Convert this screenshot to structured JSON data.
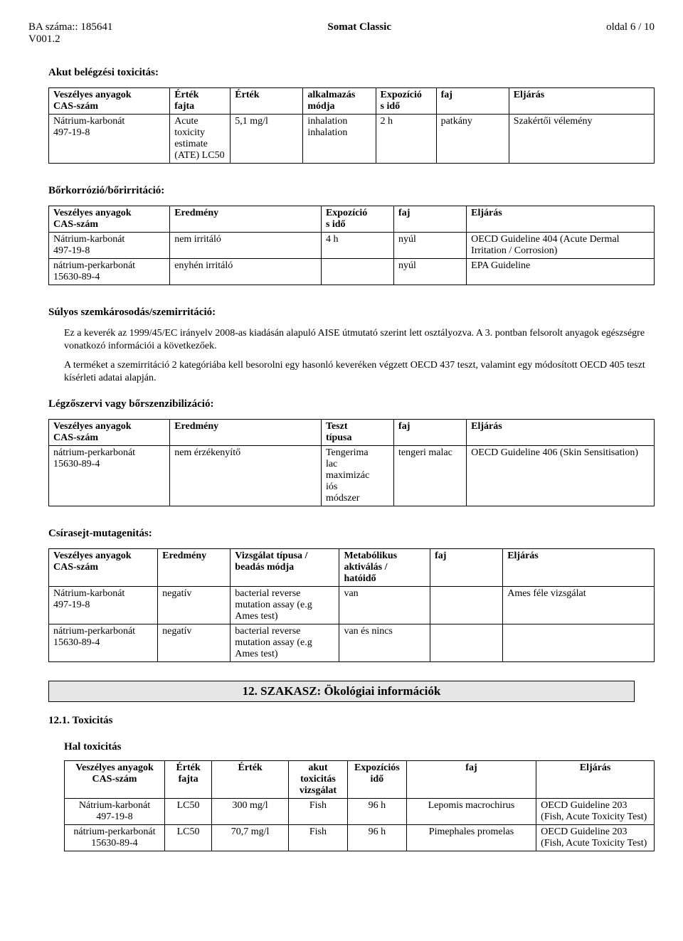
{
  "header": {
    "ba_label": "BA száma::",
    "ba_value": "185641",
    "v_label": "V001.2",
    "product": "Somat Classic",
    "page": "oldal 6 / 10"
  },
  "acute_inhalation": {
    "title": "Akut belégzési toxicitás:",
    "headers": [
      "Veszélyes anyagok\nCAS-szám",
      "Érték\nfajta",
      "Érték",
      "alkalmazás\nmódja",
      "Expozíció\ns idő",
      "faj",
      "Eljárás"
    ],
    "rows": [
      [
        "Nátrium-karbonát\n497-19-8",
        "Acute toxicity estimate (ATE) LC50",
        "5,1 mg/l",
        "inhalation inhalation",
        "2 h",
        "patkány",
        "Szakértői vélemény"
      ]
    ]
  },
  "skin_corrosion": {
    "title": "Bőrkorrózió/bőrirritáció:",
    "headers": [
      "Veszélyes anyagok\nCAS-szám",
      "Eredmény",
      "Expozíció\ns idő",
      "faj",
      "Eljárás"
    ],
    "rows": [
      [
        "Nátrium-karbonát\n497-19-8",
        "nem irritáló",
        "4 h",
        "nyúl",
        "OECD Guideline 404 (Acute Dermal Irritation / Corrosion)"
      ],
      [
        "nátrium-perkarbonát\n15630-89-4",
        "enyhén irritáló",
        "",
        "nyúl",
        "EPA Guideline"
      ]
    ]
  },
  "eye_damage": {
    "title": "Súlyos szemkárosodás/szemirritáció:",
    "p1": "Ez a keverék az 1999/45/EC irányelv 2008-as kiadásán alapuló AISE útmutató szerint lett osztályozva. A 3. pontban felsorolt anyagok egészségre vonatkozó információi a következőek.",
    "p2": "A terméket a szemirritáció 2 kategóriába kell besorolni egy hasonló keveréken végzett OECD 437 teszt, valamint egy módosított OECD 405 teszt kísérleti adatai alapján."
  },
  "sensitisation": {
    "title": "Légzőszervi vagy bőrszenzibilizáció:",
    "headers": [
      "Veszélyes anyagok\nCAS-szám",
      "Eredmény",
      "Teszt\ntípusa",
      "faj",
      "Eljárás"
    ],
    "rows": [
      [
        "nátrium-perkarbonát\n15630-89-4",
        "nem érzékenyítő",
        "Tengerima\nlac\nmaximizác\niós\nmódszer",
        "tengeri malac",
        "OECD Guideline 406 (Skin Sensitisation)"
      ]
    ]
  },
  "mutagenicity": {
    "title": "Csírasejt-mutagenitás:",
    "headers": [
      "Veszélyes anyagok\nCAS-szám",
      "Eredmény",
      "Vizsgálat típusa /\nbeadás módja",
      "Metabólikus\naktiválás /\nhatóidő",
      "faj",
      "Eljárás"
    ],
    "rows": [
      [
        "Nátrium-karbonát\n497-19-8",
        "negatív",
        "bacterial reverse mutation assay (e.g Ames test)",
        "van",
        "",
        "Ames féle vizsgálat"
      ],
      [
        "nátrium-perkarbonát\n15630-89-4",
        "negatív",
        "bacterial reverse mutation assay (e.g Ames test)",
        "van és nincs",
        "",
        ""
      ]
    ]
  },
  "eco_banner": "12. SZAKASZ: Ökológiai információk",
  "toxicity_num": "12.1. Toxicitás",
  "fish_tox": {
    "title": "Hal toxicitás",
    "headers": [
      "Veszélyes anyagok\nCAS-szám",
      "Érték\nfajta",
      "Érték",
      "akut\ntoxicitás\nvizsgálat",
      "Expozíciós\nidő",
      "faj",
      "Eljárás"
    ],
    "rows": [
      [
        "Nátrium-karbonát\n497-19-8",
        "LC50",
        "300 mg/l",
        "Fish",
        "96 h",
        "Lepomis macrochirus",
        "OECD Guideline 203 (Fish, Acute Toxicity Test)"
      ],
      [
        "nátrium-perkarbonát\n15630-89-4",
        "LC50",
        "70,7 mg/l",
        "Fish",
        "96 h",
        "Pimephales promelas",
        "OECD Guideline 203 (Fish, Acute Toxicity Test)"
      ]
    ]
  }
}
